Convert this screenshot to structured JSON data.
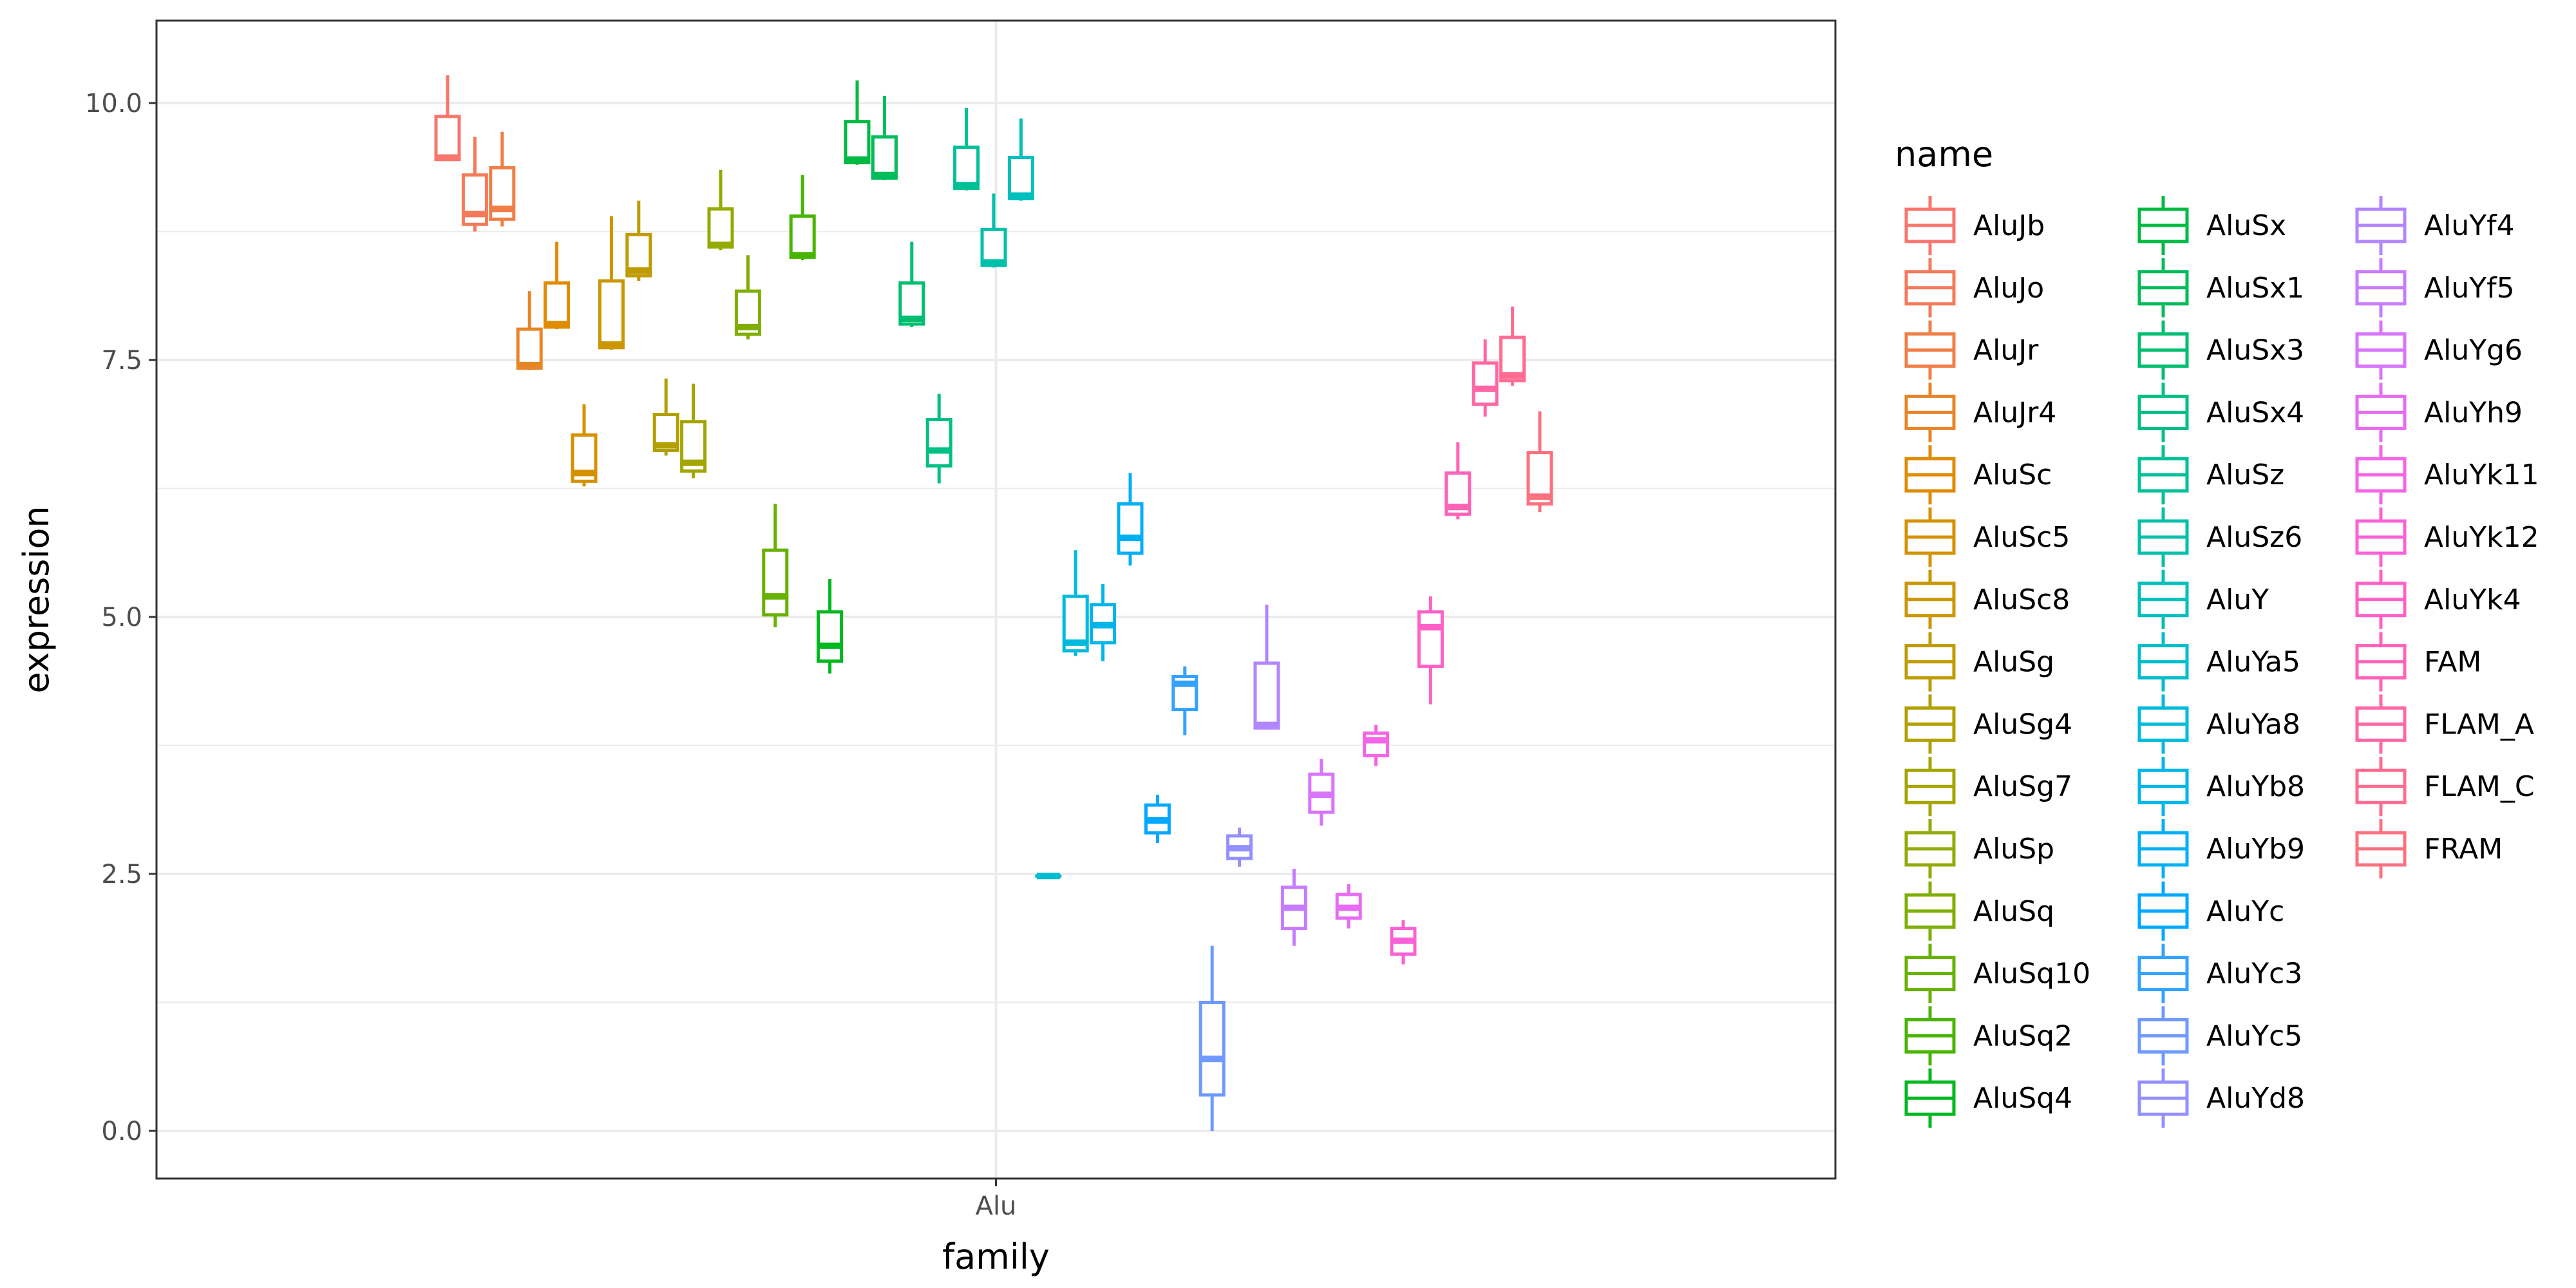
{
  "chart_data": {
    "type": "boxplot",
    "xlabel": "family",
    "ylabel": "expression",
    "categories": [
      "Alu"
    ],
    "ylim": [
      -0.5,
      10.8
    ],
    "yticks": [
      "0.0",
      "2.5",
      "5.0",
      "7.5",
      "10.0"
    ],
    "grid": true,
    "legend_position": "right",
    "legend_title": "name",
    "series": [
      {
        "name": "AluJb",
        "color": "#F8766D",
        "min": 9.45,
        "q1": 9.45,
        "median": 9.47,
        "q3": 9.87,
        "max": 10.27
      },
      {
        "name": "AluJo",
        "color": "#F47A5A",
        "min": 8.75,
        "q1": 8.82,
        "median": 8.92,
        "q3": 9.3,
        "max": 9.67
      },
      {
        "name": "AluJr",
        "color": "#EF7F46",
        "min": 8.8,
        "q1": 8.87,
        "median": 8.97,
        "q3": 9.37,
        "max": 9.72
      },
      {
        "name": "AluJr4",
        "color": "#E88526",
        "min": 7.4,
        "q1": 7.42,
        "median": 7.45,
        "q3": 7.8,
        "max": 8.17
      },
      {
        "name": "AluSc",
        "color": "#E08B00",
        "min": 7.8,
        "q1": 7.82,
        "median": 7.85,
        "q3": 8.25,
        "max": 8.65
      },
      {
        "name": "AluSc5",
        "color": "#D69100",
        "min": 6.27,
        "q1": 6.32,
        "median": 6.4,
        "q3": 6.77,
        "max": 7.07
      },
      {
        "name": "AluSc8",
        "color": "#CB9600",
        "min": 7.6,
        "q1": 7.62,
        "median": 7.65,
        "q3": 8.27,
        "max": 8.9
      },
      {
        "name": "AluSg",
        "color": "#BF9B00",
        "min": 8.27,
        "q1": 8.32,
        "median": 8.37,
        "q3": 8.72,
        "max": 9.05
      },
      {
        "name": "AluSg4",
        "color": "#B2A000",
        "min": 6.57,
        "q1": 6.62,
        "median": 6.67,
        "q3": 6.97,
        "max": 7.32
      },
      {
        "name": "AluSg7",
        "color": "#A3A500",
        "min": 6.35,
        "q1": 6.42,
        "median": 6.5,
        "q3": 6.9,
        "max": 7.27
      },
      {
        "name": "AluSp",
        "color": "#93AA00",
        "min": 8.57,
        "q1": 8.6,
        "median": 8.62,
        "q3": 8.97,
        "max": 9.35
      },
      {
        "name": "AluSq",
        "color": "#7FAE00",
        "min": 7.7,
        "q1": 7.75,
        "median": 7.82,
        "q3": 8.17,
        "max": 8.52
      },
      {
        "name": "AluSq10",
        "color": "#67B100",
        "min": 4.9,
        "q1": 5.02,
        "median": 5.2,
        "q3": 5.65,
        "max": 6.1
      },
      {
        "name": "AluSq2",
        "color": "#47B500",
        "min": 8.47,
        "q1": 8.5,
        "median": 8.52,
        "q3": 8.9,
        "max": 9.3
      },
      {
        "name": "AluSq4",
        "color": "#00B81F",
        "min": 4.45,
        "q1": 4.57,
        "median": 4.72,
        "q3": 5.05,
        "max": 5.37
      },
      {
        "name": "AluSx",
        "color": "#00BA42",
        "min": 9.4,
        "q1": 9.42,
        "median": 9.45,
        "q3": 9.82,
        "max": 10.22
      },
      {
        "name": "AluSx1",
        "color": "#00BC5A",
        "min": 9.25,
        "q1": 9.27,
        "median": 9.3,
        "q3": 9.67,
        "max": 10.07
      },
      {
        "name": "AluSx3",
        "color": "#00BE70",
        "min": 7.82,
        "q1": 7.85,
        "median": 7.9,
        "q3": 8.25,
        "max": 8.65
      },
      {
        "name": "AluSx4",
        "color": "#00BF84",
        "min": 6.3,
        "q1": 6.47,
        "median": 6.62,
        "q3": 6.92,
        "max": 7.17
      },
      {
        "name": "AluSz",
        "color": "#00C097",
        "min": 9.15,
        "q1": 9.17,
        "median": 9.2,
        "q3": 9.57,
        "max": 9.95
      },
      {
        "name": "AluSz6",
        "color": "#00C0AA",
        "min": 8.4,
        "q1": 8.42,
        "median": 8.45,
        "q3": 8.77,
        "max": 9.12
      },
      {
        "name": "AluY",
        "color": "#00BFBC",
        "min": 9.05,
        "q1": 9.07,
        "median": 9.1,
        "q3": 9.47,
        "max": 9.85
      },
      {
        "name": "AluYa5",
        "color": "#00BDCD",
        "min": 2.48,
        "q1": 2.48,
        "median": 2.48,
        "q3": 2.48,
        "max": 2.48
      },
      {
        "name": "AluYa8",
        "color": "#00BADC",
        "min": 4.62,
        "q1": 4.67,
        "median": 4.75,
        "q3": 5.2,
        "max": 5.65
      },
      {
        "name": "AluYb8",
        "color": "#00B5EA",
        "min": 4.57,
        "q1": 4.75,
        "median": 4.92,
        "q3": 5.12,
        "max": 5.32
      },
      {
        "name": "AluYb9",
        "color": "#00B0F6",
        "min": 5.5,
        "q1": 5.62,
        "median": 5.77,
        "q3": 6.1,
        "max": 6.4
      },
      {
        "name": "AluYc",
        "color": "#00A9FF",
        "min": 2.8,
        "q1": 2.9,
        "median": 3.02,
        "q3": 3.17,
        "max": 3.27
      },
      {
        "name": "AluYc3",
        "color": "#35A2FF",
        "min": 3.85,
        "q1": 4.1,
        "median": 4.35,
        "q3": 4.42,
        "max": 4.52
      },
      {
        "name": "AluYc5",
        "color": "#7099FF",
        "min": 0.0,
        "q1": 0.35,
        "median": 0.7,
        "q3": 1.25,
        "max": 1.8
      },
      {
        "name": "AluYd8",
        "color": "#9590FF",
        "min": 2.57,
        "q1": 2.65,
        "median": 2.75,
        "q3": 2.87,
        "max": 2.95
      },
      {
        "name": "AluYf4",
        "color": "#B186FF",
        "min": 3.92,
        "q1": 3.92,
        "median": 3.95,
        "q3": 4.55,
        "max": 5.12
      },
      {
        "name": "AluYf5",
        "color": "#C77CFF",
        "min": 1.8,
        "q1": 1.97,
        "median": 2.17,
        "q3": 2.37,
        "max": 2.55
      },
      {
        "name": "AluYg6",
        "color": "#D874FD",
        "min": 2.97,
        "q1": 3.1,
        "median": 3.27,
        "q3": 3.47,
        "max": 3.62
      },
      {
        "name": "AluYh9",
        "color": "#E76BF3",
        "min": 1.97,
        "q1": 2.07,
        "median": 2.17,
        "q3": 2.3,
        "max": 2.4
      },
      {
        "name": "AluYk11",
        "color": "#F365E6",
        "min": 3.55,
        "q1": 3.65,
        "median": 3.8,
        "q3": 3.87,
        "max": 3.95
      },
      {
        "name": "AluYk12",
        "color": "#FB61D7",
        "min": 1.62,
        "q1": 1.72,
        "median": 1.85,
        "q3": 1.97,
        "max": 2.05
      },
      {
        "name": "AluYk4",
        "color": "#FF61C7",
        "min": 4.15,
        "q1": 4.52,
        "median": 4.9,
        "q3": 5.05,
        "max": 5.2
      },
      {
        "name": "FAM",
        "color": "#FF63B6",
        "min": 5.95,
        "q1": 6.0,
        "median": 6.07,
        "q3": 6.4,
        "max": 6.7
      },
      {
        "name": "FLAM_A",
        "color": "#FF67A4",
        "min": 6.95,
        "q1": 7.07,
        "median": 7.22,
        "q3": 7.47,
        "max": 7.7
      },
      {
        "name": "FLAM_C",
        "color": "#FF6C91",
        "min": 7.25,
        "q1": 7.3,
        "median": 7.35,
        "q3": 7.72,
        "max": 8.02
      },
      {
        "name": "FRAM",
        "color": "#FC717F",
        "min": 6.02,
        "q1": 6.1,
        "median": 6.17,
        "q3": 6.6,
        "max": 7.0
      }
    ]
  }
}
